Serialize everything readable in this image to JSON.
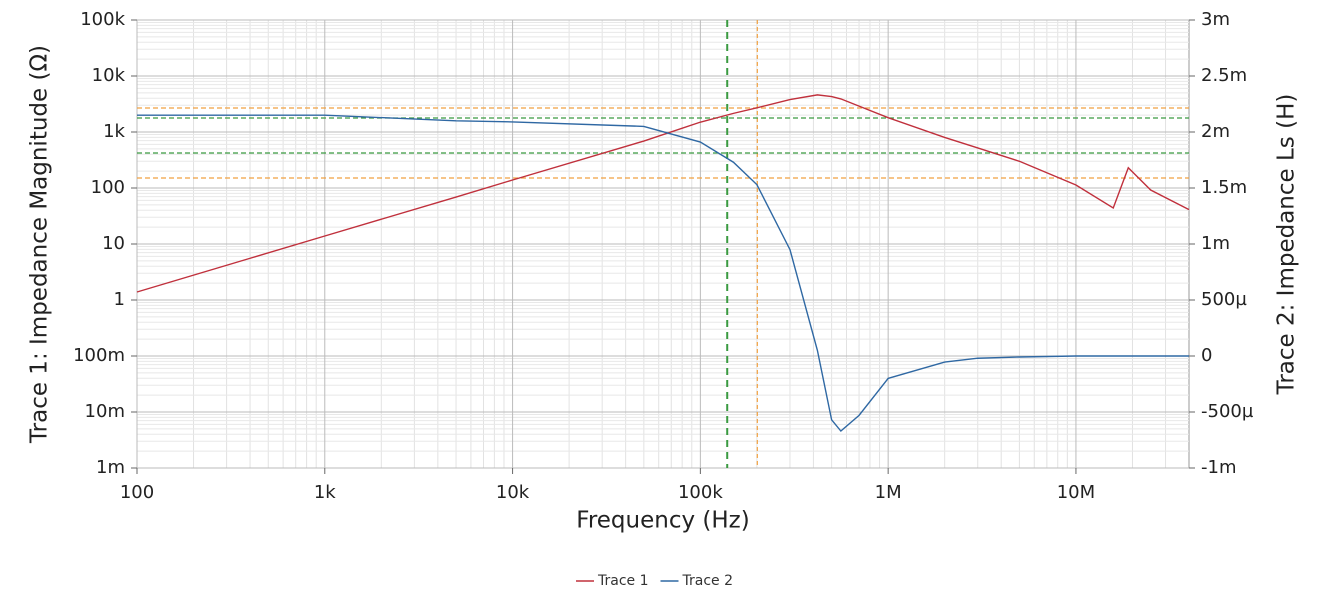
{
  "chart_data": {
    "type": "line",
    "xlabel": "Frequency (Hz)",
    "ylabel": "Trace 1: Impedance Magnitude (Ω)",
    "y2label": "Trace 2: Impedance Ls (H)",
    "xscale": "log",
    "yscale": "log",
    "grid": true,
    "minor_grid": true,
    "legend": "bottom",
    "xlim": [
      100,
      40000000
    ],
    "xticks": [
      100,
      {
        "value": 1000,
        "label": "1k"
      },
      {
        "value": 10000,
        "label": "10k"
      },
      {
        "value": 100000,
        "label": "100k"
      },
      {
        "value": 1000000,
        "label": "1M"
      },
      {
        "value": 10000000,
        "label": "10M"
      }
    ],
    "ylim": [
      0.001,
      100000
    ],
    "yticks": [
      {
        "value": 0.001,
        "label": "1m"
      },
      {
        "value": 0.01,
        "label": "10m"
      },
      {
        "value": 0.1,
        "label": "100m"
      },
      1,
      10,
      100,
      {
        "value": 1000,
        "label": "1k"
      },
      {
        "value": 10000,
        "label": "10k"
      },
      {
        "value": 100000,
        "label": "100k"
      }
    ],
    "y2lim": [
      -0.001,
      0.003
    ],
    "y2ticks": [
      {
        "value": -0.001,
        "label": "-1m"
      },
      {
        "value": -0.0005,
        "label": "-500µ"
      },
      {
        "value": 0,
        "label": "0"
      },
      {
        "value": 0.0005,
        "label": "500µ"
      },
      {
        "value": 0.001,
        "label": "1m"
      },
      {
        "value": 0.0015,
        "label": "1.5m"
      },
      {
        "value": 0.002,
        "label": "2m"
      },
      {
        "value": 0.0025,
        "label": "2.5m"
      },
      {
        "value": 0.003,
        "label": "3m"
      }
    ],
    "x": [
      100,
      1000,
      5000,
      10000,
      50000,
      100000,
      150000,
      200000,
      300000,
      420000,
      500000,
      560000,
      700000,
      1000000,
      2000000,
      3000000,
      5000000,
      10000000,
      15800000,
      19000000,
      25000000,
      40000000
    ],
    "series": [
      {
        "name": "Trace 1",
        "color": "#c0303c",
        "axis": "y",
        "values": [
          1.39,
          13.9,
          69,
          139,
          690,
          1500,
          2150,
          2700,
          3800,
          4600,
          4300,
          3900,
          2900,
          1800,
          800,
          520,
          300,
          113,
          44,
          230,
          92,
          41
        ]
      },
      {
        "name": "Trace 2",
        "color": "#2f68a3",
        "axis": "y2",
        "values": [
          0.00215,
          0.00215,
          0.0021,
          0.00209,
          0.00205,
          0.00191,
          0.00173,
          0.00153,
          0.00095,
          5e-05,
          -0.00057,
          -0.00067,
          -0.00053,
          -0.0002,
          -5.4e-05,
          -2e-05,
          -9e-06,
          0,
          0,
          0,
          0,
          0
        ]
      }
    ],
    "vcursors": [
      {
        "x": 139000,
        "color": "#3a9a40"
      },
      {
        "x": 201000,
        "color": "#f0a040"
      }
    ],
    "hcursors": [
      {
        "y": 2683,
        "color": "#f0a040"
      },
      {
        "y": 1778,
        "color": "#3a9a40"
      },
      {
        "y": 422,
        "color": "#3a9a40"
      },
      {
        "y": 151,
        "color": "#f0a040"
      }
    ]
  }
}
